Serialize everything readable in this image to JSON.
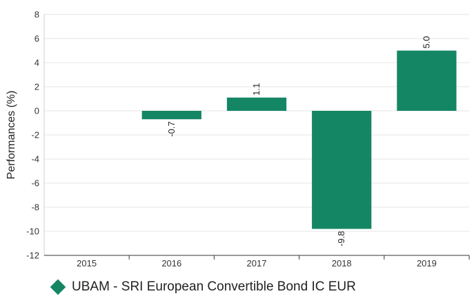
{
  "chart_data": {
    "type": "bar",
    "title": "",
    "xlabel": "",
    "ylabel": "Performances (%)",
    "categories": [
      "2015",
      "2016",
      "2017",
      "2018",
      "2019"
    ],
    "series": [
      {
        "name": "UBAM - SRI European Convertible Bond IC EUR",
        "values": [
          null,
          -0.7,
          1.1,
          -9.8,
          5.0
        ],
        "labels": [
          "",
          "-0.7",
          "1.1",
          "-9.8",
          "5.0"
        ]
      }
    ],
    "ylim": [
      -12,
      8
    ],
    "yticks": [
      8,
      6,
      4,
      2,
      0,
      -2,
      -4,
      -6,
      -8,
      -10,
      -12
    ],
    "grid": true,
    "legend_position": "bottom-left",
    "colors": {
      "bar": "#148664",
      "grid": "#e6e6e6",
      "axis": "#333333"
    }
  }
}
